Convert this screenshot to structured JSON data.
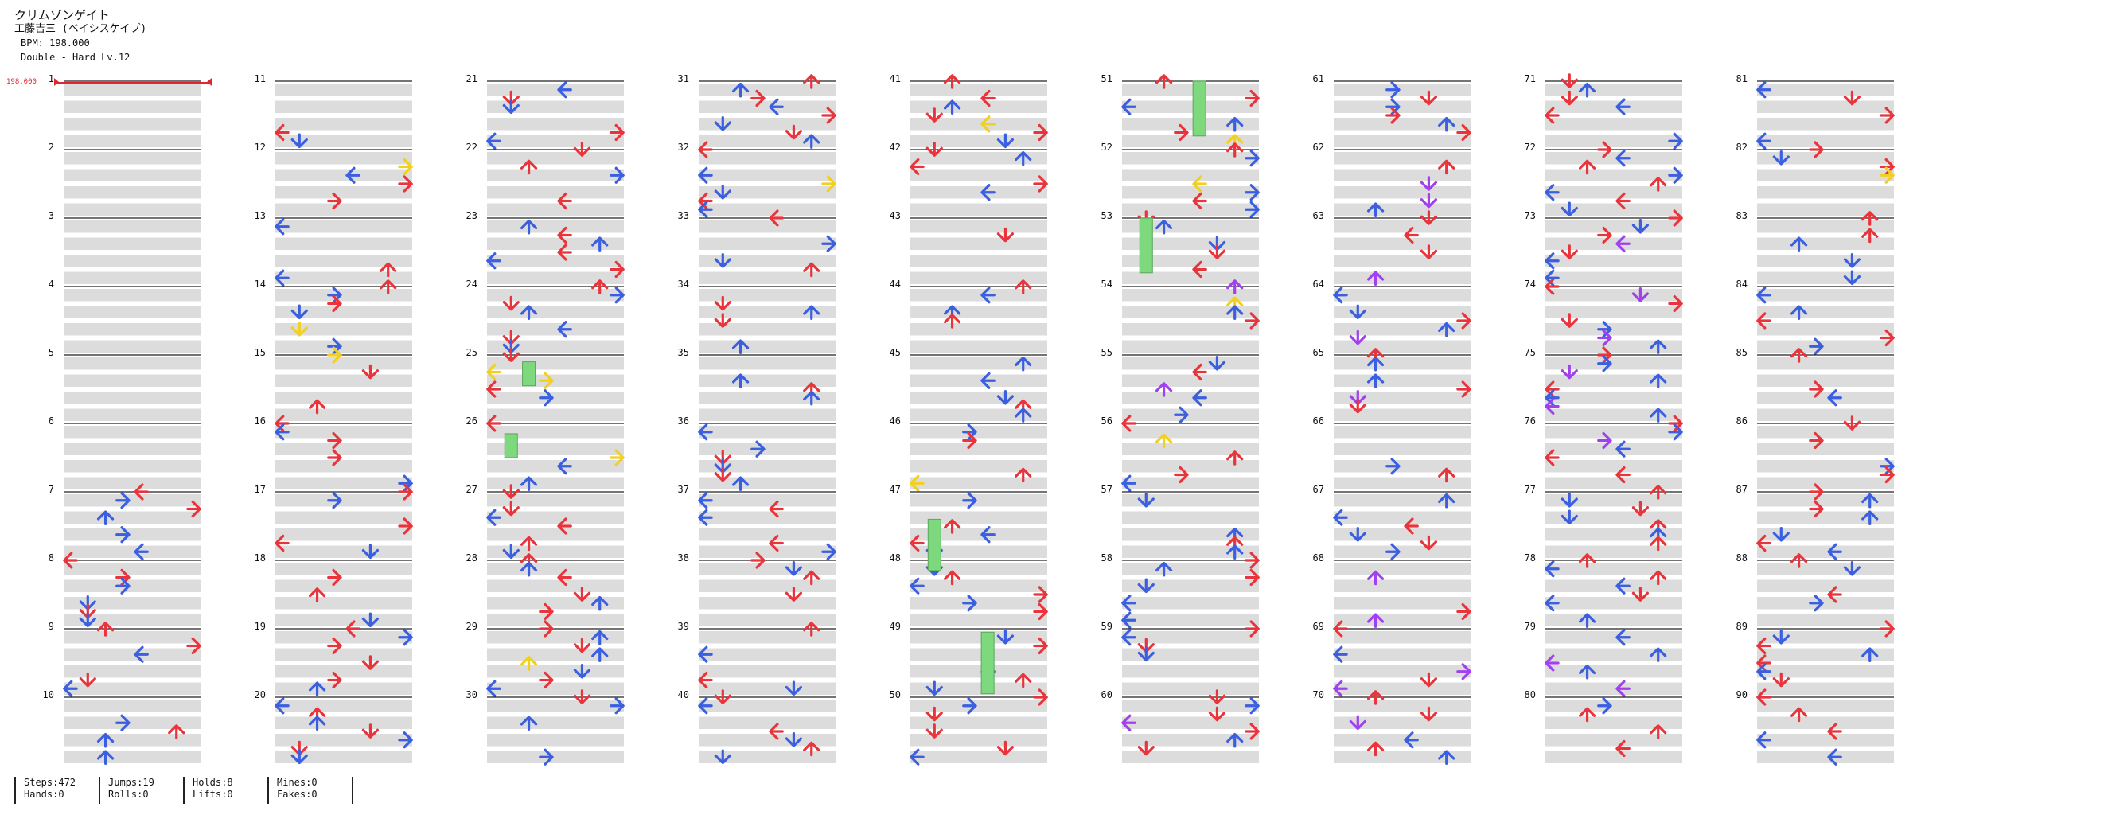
{
  "header": {
    "title": "クリムゾンゲイト",
    "artist": "工藤吉三 (ベイシスケイプ)",
    "bpm_line": "BPM: 198.000",
    "difficulty_line": "Double - Hard Lv.12"
  },
  "bpm_marker": {
    "label": "198.000",
    "color": "#e0262e"
  },
  "colors": {
    "quarter": "#e8343a",
    "eighth": "#3a5fe0",
    "twelfth": "#a040f0",
    "sixteenth": "#f2d020",
    "hold": "#7ed87e",
    "band": "#dcdcdc"
  },
  "chart_data": {
    "type": "table",
    "description_units": "rows per measure: 4 (quarter beats); direction codes: L D U R; panels: 1-4 left pad, 5-8 right pad",
    "measures": [
      "1",
      "2",
      "3",
      "4",
      "5",
      "6",
      "7",
      "8",
      "9",
      "10",
      "11",
      "12",
      "13",
      "14",
      "15",
      "16",
      "17",
      "18",
      "19",
      "20",
      "21",
      "22",
      "23",
      "24",
      "25",
      "26",
      "27",
      "28",
      "29",
      "30",
      "31",
      "32",
      "33",
      "34",
      "35",
      "36",
      "37",
      "38",
      "39",
      "40",
      "41",
      "42",
      "43",
      "44",
      "45",
      "46",
      "47",
      "48",
      "49",
      "50",
      "51",
      "52",
      "53",
      "54",
      "55",
      "56",
      "57",
      "58",
      "59",
      "60",
      "61",
      "62",
      "63",
      "64",
      "65",
      "66",
      "67",
      "68",
      "69",
      "70",
      "71",
      "72",
      "73",
      "74",
      "75",
      "76",
      "77",
      "78",
      "79",
      "80",
      "81",
      "82",
      "83",
      "84",
      "85",
      "86",
      "87",
      "88",
      "89",
      "90"
    ]
  },
  "stats": [
    {
      "a": "Steps:472",
      "b": "Hands:0"
    },
    {
      "a": "Jumps:19",
      "b": "Rolls:0"
    },
    {
      "a": "Holds:8",
      "b": "Lifts:0"
    },
    {
      "a": "Mines:0",
      "b": "Fakes:0"
    }
  ]
}
